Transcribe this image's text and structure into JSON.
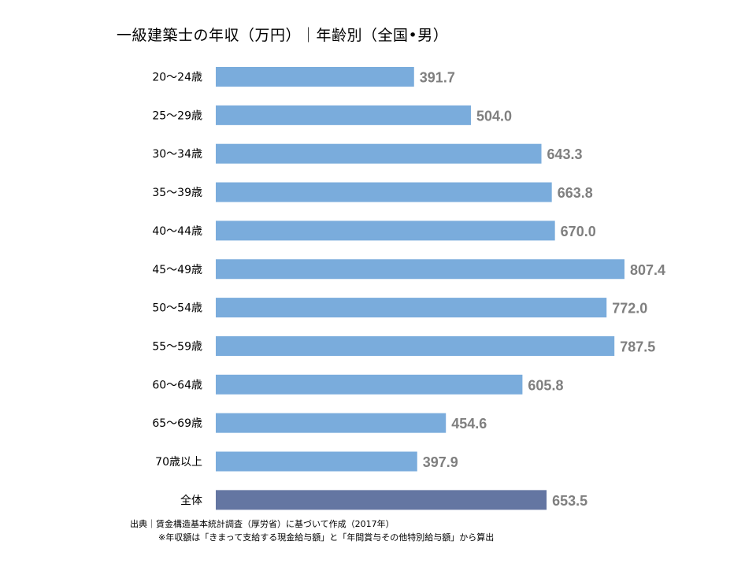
{
  "title": "一級建築士の年収（万円）｜年齢別（全国•男）",
  "chart_data": {
    "type": "bar",
    "orientation": "horizontal",
    "categories": [
      "20～24歳",
      "25～29歳",
      "30～34歳",
      "35～39歳",
      "40～44歳",
      "45～49歳",
      "50～54歳",
      "55～59歳",
      "60～64歳",
      "65～69歳",
      "70歳以上",
      "全体"
    ],
    "values": [
      391.7,
      504.0,
      643.3,
      663.8,
      670.0,
      807.4,
      772.0,
      787.5,
      605.8,
      454.6,
      397.9,
      653.5
    ],
    "value_labels": [
      "391.7",
      "504.0",
      "643.3",
      "663.8",
      "670.0",
      "807.4",
      "772.0",
      "787.5",
      "605.8",
      "454.6",
      "397.9",
      "653.5"
    ],
    "colors": {
      "bar": "#7aacdc",
      "total_bar": "#6476a2",
      "value_label": "#7f7f7f"
    },
    "highlight_category": "全体",
    "xlim": [
      0,
      807.4
    ],
    "grid": false,
    "legend": "none"
  },
  "footer": {
    "source": "出典｜賃金構造基本統計調査（厚労省）に基づいて作成（2017年）",
    "note": "※年収額は「きまって支給する現金給与額」と「年間賞与その他特別給与額」から算出"
  }
}
